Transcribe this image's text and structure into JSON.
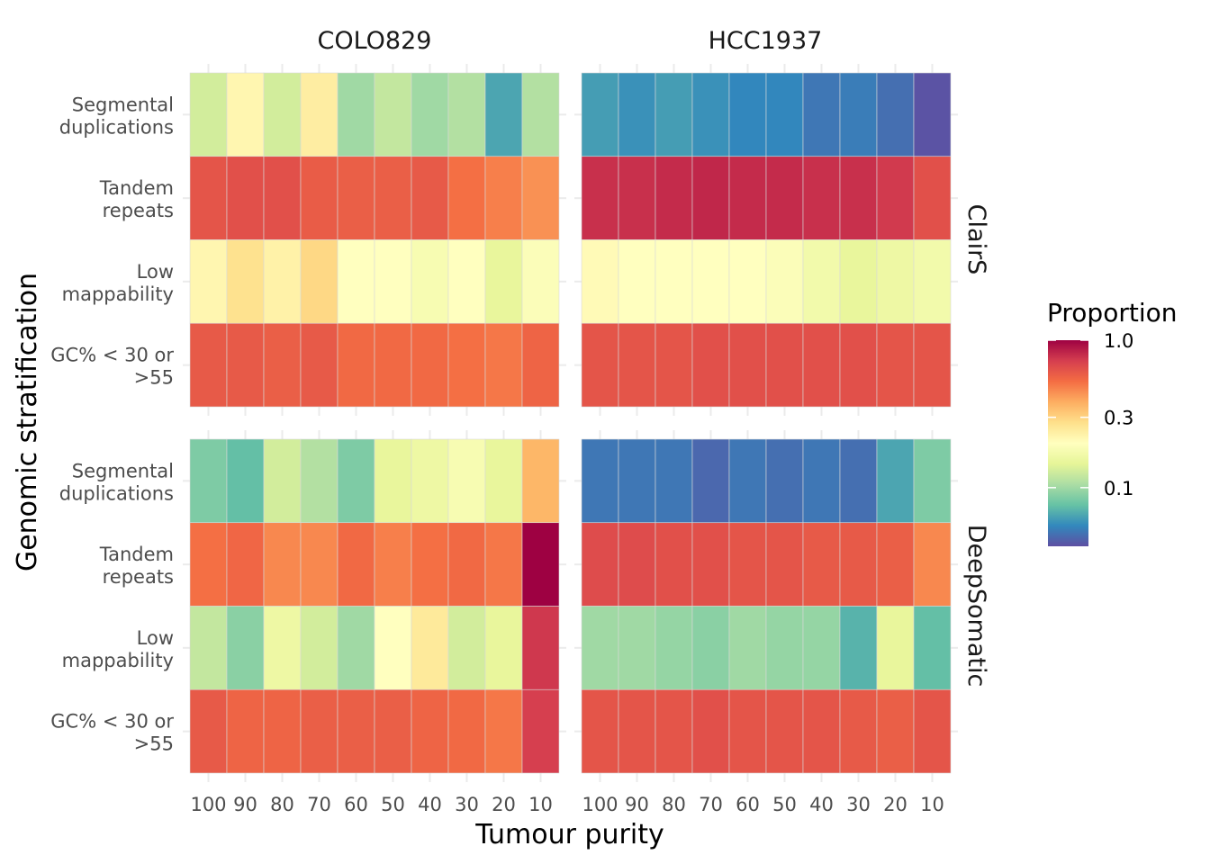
{
  "chart_data": {
    "type": "heatmap",
    "xlabel": "Tumour purity",
    "ylabel": "Genomic stratification",
    "col_facets": [
      "COLO829",
      "HCC1937"
    ],
    "row_facets": [
      "ClairS",
      "DeepSomatic"
    ],
    "x_categories": [
      "100",
      "90",
      "80",
      "70",
      "60",
      "50",
      "40",
      "30",
      "20",
      "10"
    ],
    "y_categories": [
      "Segmental duplications",
      "Tandem repeats",
      "Low mappability",
      "GC% < 30 or >55"
    ],
    "y_tick_lines": [
      [
        "Segmental",
        "duplications"
      ],
      [
        "Tandem",
        "repeats"
      ],
      [
        "Low",
        "mappability"
      ],
      [
        "GC% < 30 or",
        ">55"
      ]
    ],
    "color_scale": {
      "name": "Spectral (reversed)",
      "transform": "log10",
      "limits": [
        0.04,
        1.0
      ],
      "low": "#5e4fa2",
      "high": "#9e0142"
    },
    "legend": {
      "title": "Proportion",
      "breaks": [
        1.0,
        0.3,
        0.1
      ],
      "labels": [
        "1.0",
        "0.3",
        "0.1"
      ],
      "position": "right"
    },
    "panels": [
      {
        "col": "COLO829",
        "row": "ClairS",
        "values": [
          [
            0.13,
            0.22,
            0.13,
            0.24,
            0.1,
            0.12,
            0.1,
            0.11,
            0.065,
            0.11
          ],
          [
            0.62,
            0.64,
            0.64,
            0.59,
            0.58,
            0.58,
            0.6,
            0.52,
            0.48,
            0.44
          ],
          [
            0.22,
            0.27,
            0.23,
            0.29,
            0.2,
            0.2,
            0.18,
            0.2,
            0.15,
            0.19
          ],
          [
            0.6,
            0.6,
            0.58,
            0.6,
            0.54,
            0.54,
            0.54,
            0.52,
            0.5,
            0.56
          ]
        ]
      },
      {
        "col": "HCC1937",
        "row": "ClairS",
        "values": [
          [
            0.062,
            0.058,
            0.062,
            0.058,
            0.055,
            0.055,
            0.05,
            0.052,
            0.048,
            0.041
          ],
          [
            0.78,
            0.78,
            0.8,
            0.82,
            0.8,
            0.8,
            0.78,
            0.78,
            0.74,
            0.64
          ],
          [
            0.21,
            0.2,
            0.2,
            0.2,
            0.2,
            0.19,
            0.17,
            0.15,
            0.16,
            0.17
          ],
          [
            0.62,
            0.62,
            0.62,
            0.64,
            0.64,
            0.64,
            0.64,
            0.64,
            0.62,
            0.62
          ]
        ]
      },
      {
        "col": "COLO829",
        "row": "DeepSomatic",
        "values": [
          [
            0.085,
            0.075,
            0.13,
            0.11,
            0.085,
            0.15,
            0.16,
            0.18,
            0.15,
            0.36
          ],
          [
            0.52,
            0.55,
            0.46,
            0.46,
            0.54,
            0.48,
            0.52,
            0.54,
            0.5,
            1.0
          ],
          [
            0.12,
            0.09,
            0.16,
            0.13,
            0.1,
            0.2,
            0.25,
            0.13,
            0.15,
            0.75
          ],
          [
            0.6,
            0.56,
            0.56,
            0.58,
            0.58,
            0.58,
            0.56,
            0.54,
            0.5,
            0.72
          ]
        ]
      },
      {
        "col": "HCC1937",
        "row": "DeepSomatic",
        "values": [
          [
            0.05,
            0.05,
            0.05,
            0.046,
            0.05,
            0.048,
            0.05,
            0.048,
            0.065,
            0.085
          ],
          [
            0.66,
            0.66,
            0.64,
            0.64,
            0.62,
            0.62,
            0.6,
            0.6,
            0.58,
            0.46
          ],
          [
            0.1,
            0.1,
            0.095,
            0.09,
            0.1,
            0.095,
            0.095,
            0.07,
            0.15,
            0.075
          ],
          [
            0.62,
            0.62,
            0.62,
            0.64,
            0.62,
            0.62,
            0.62,
            0.6,
            0.58,
            0.62
          ]
        ]
      }
    ]
  }
}
